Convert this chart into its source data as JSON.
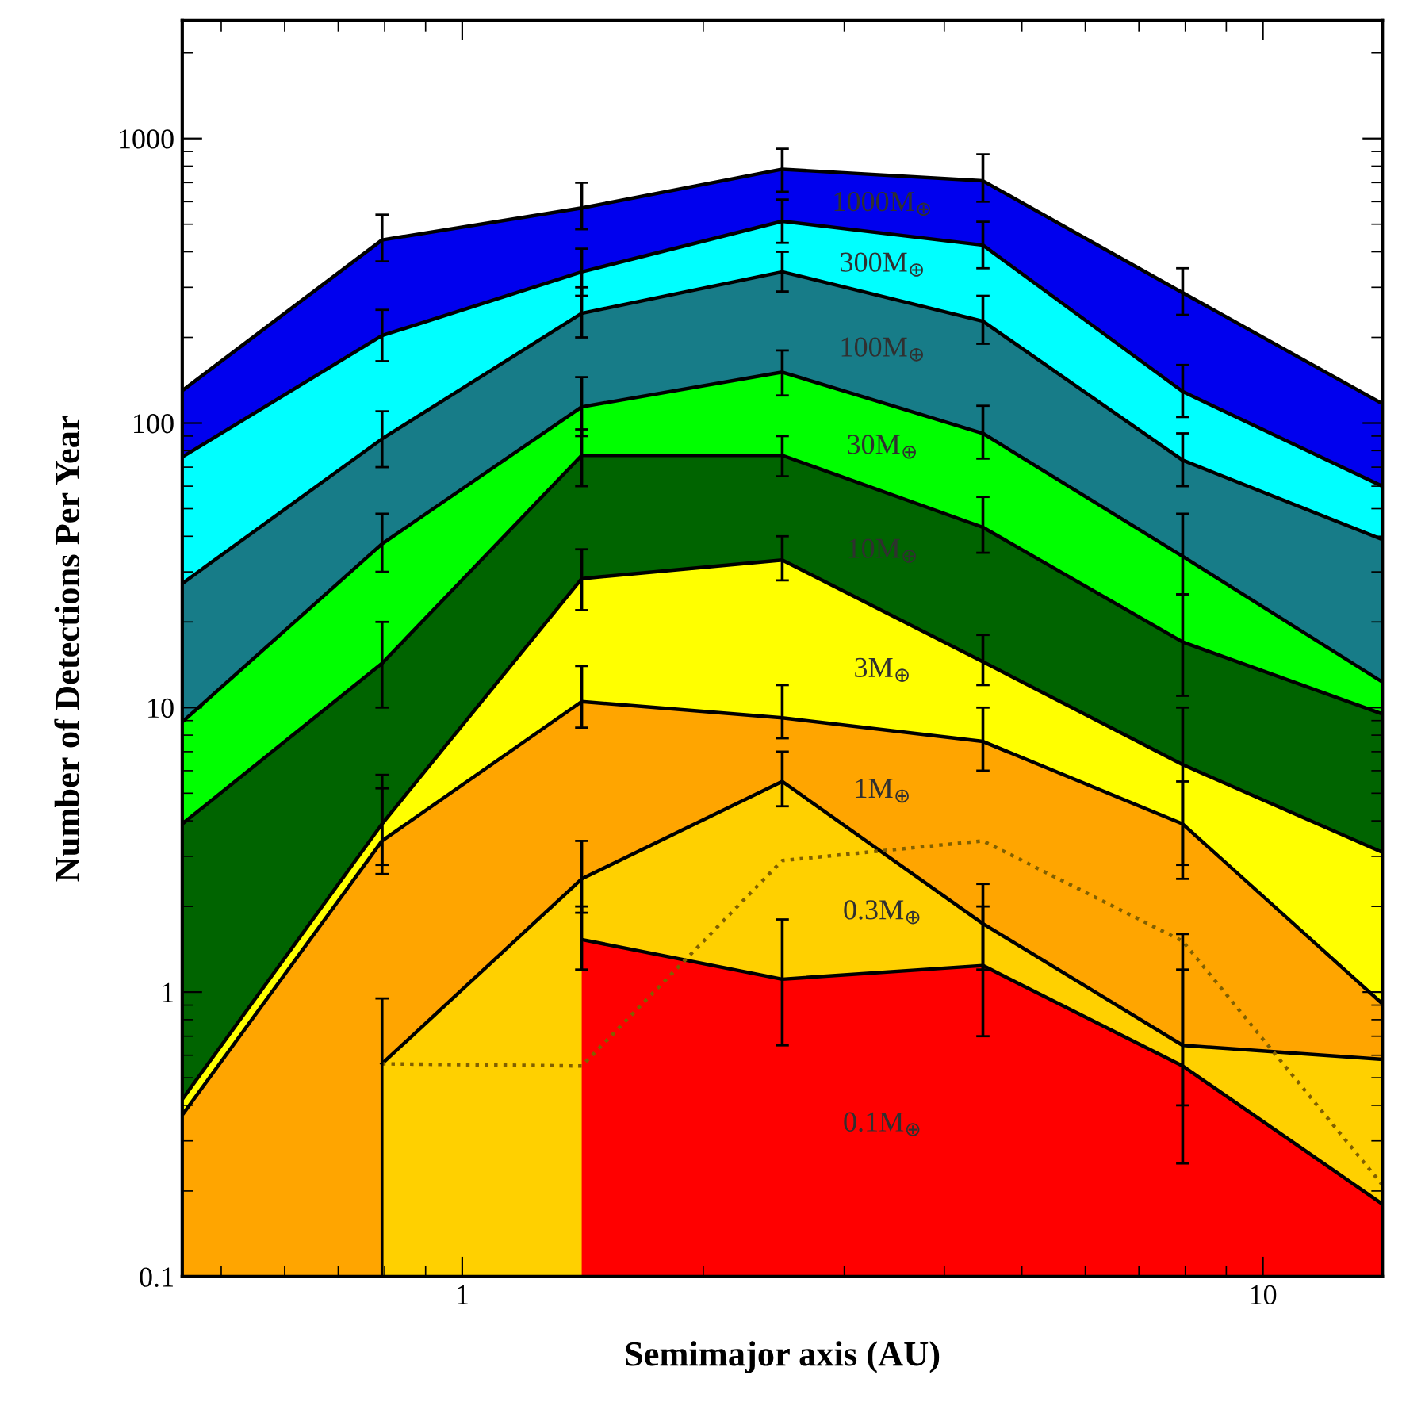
{
  "chart_data": {
    "type": "area",
    "xlabel": "Semimajor axis (AU)",
    "ylabel": "Number of Detections Per Year",
    "x": [
      0.447,
      0.794,
      1.41,
      2.51,
      4.47,
      7.94,
      14.1
    ],
    "log": "xy",
    "xlim": [
      0.447,
      14.1
    ],
    "ylim": [
      0.1,
      2600
    ],
    "xticks": [
      1,
      10
    ],
    "yticks": [
      0.1,
      1,
      10,
      100,
      1000
    ],
    "grid": false,
    "legend": false,
    "marker": "none",
    "series": [
      {
        "name": "1000M$_{⊕}$",
        "color": "#0000ee",
        "values": [
          130,
          440,
          570,
          780,
          710,
          287,
          117
        ],
        "errors": [
          null,
          [
            370,
            540
          ],
          [
            480,
            700
          ],
          [
            650,
            920
          ],
          [
            600,
            880
          ],
          [
            240,
            350
          ],
          null
        ]
      },
      {
        "name": "300M$_{⊕}$",
        "color": "#00ffff",
        "values": [
          76,
          203,
          340,
          512,
          422,
          129,
          60
        ],
        "errors": [
          null,
          [
            165,
            250
          ],
          [
            280,
            410
          ],
          [
            430,
            610
          ],
          [
            350,
            510
          ],
          [
            105,
            160
          ],
          null
        ]
      },
      {
        "name": "100M$_{⊕}$",
        "color": "#177c88",
        "values": [
          27.3,
          88,
          243,
          340,
          228,
          74,
          39
        ],
        "errors": [
          null,
          [
            70,
            110
          ],
          [
            200,
            300
          ],
          [
            290,
            400
          ],
          [
            190,
            280
          ],
          [
            60,
            92
          ],
          null
        ]
      },
      {
        "name": "30M$_{⊕}$",
        "color": "#00ff00",
        "values": [
          8.9,
          37.6,
          114,
          151,
          92,
          34,
          12.3
        ],
        "errors": [
          null,
          [
            30,
            48
          ],
          [
            90,
            145
          ],
          [
            125,
            180
          ],
          [
            75,
            115
          ],
          [
            25,
            48
          ],
          null
        ]
      },
      {
        "name": "10M$_{⊕}$",
        "color": "#006400",
        "values": [
          3.9,
          14.3,
          77,
          77,
          43,
          17,
          9.5
        ],
        "errors": [
          null,
          [
            10,
            20
          ],
          [
            60,
            95
          ],
          [
            65,
            90
          ],
          [
            35,
            55
          ],
          [
            11,
            25
          ],
          null
        ]
      },
      {
        "name": "3M$_{⊕}$",
        "color": "#ffff00",
        "values": [
          0.42,
          3.9,
          28.4,
          33,
          14.5,
          6.3,
          3.1
        ],
        "errors": [
          null,
          [
            2.8,
            5.8
          ],
          [
            22,
            36
          ],
          [
            28,
            40
          ],
          [
            12,
            18
          ],
          [
            2.5,
            10
          ],
          null
        ]
      },
      {
        "name": "1M$_{⊕}$",
        "color": "#ffa500",
        "values": [
          0.37,
          3.4,
          10.5,
          9.2,
          7.6,
          3.9,
          0.91
        ],
        "errors": [
          null,
          [
            2.6,
            5.2
          ],
          [
            8.5,
            14
          ],
          [
            7.8,
            12
          ],
          [
            6,
            10
          ],
          [
            2.8,
            5.5
          ],
          null
        ]
      },
      {
        "name": "0.3M$_{⊕}$",
        "color": "#ffd000",
        "values": [
          null,
          0.56,
          2.5,
          5.5,
          1.74,
          0.65,
          0.58
        ],
        "errors": [
          null,
          [
            0.1,
            0.95
          ],
          [
            1.9,
            3.4
          ],
          [
            4.5,
            7
          ],
          [
            1.2,
            2.4
          ],
          [
            0.4,
            1.2
          ],
          null
        ]
      },
      {
        "name": "0.1M$_{⊕}$",
        "color": "#ff0000",
        "values": [
          null,
          null,
          1.53,
          1.11,
          1.24,
          0.55,
          0.18
        ],
        "errors": [
          null,
          null,
          [
            1.2,
            2
          ],
          [
            0.65,
            1.8
          ],
          [
            0.7,
            2.0
          ],
          [
            0.25,
            1.6
          ],
          null
        ]
      },
      {
        "type": "line",
        "line_style": "dotted",
        "color": "#806000",
        "values": [
          null,
          0.56,
          0.55,
          2.9,
          3.4,
          1.51,
          0.21
        ]
      }
    ]
  }
}
